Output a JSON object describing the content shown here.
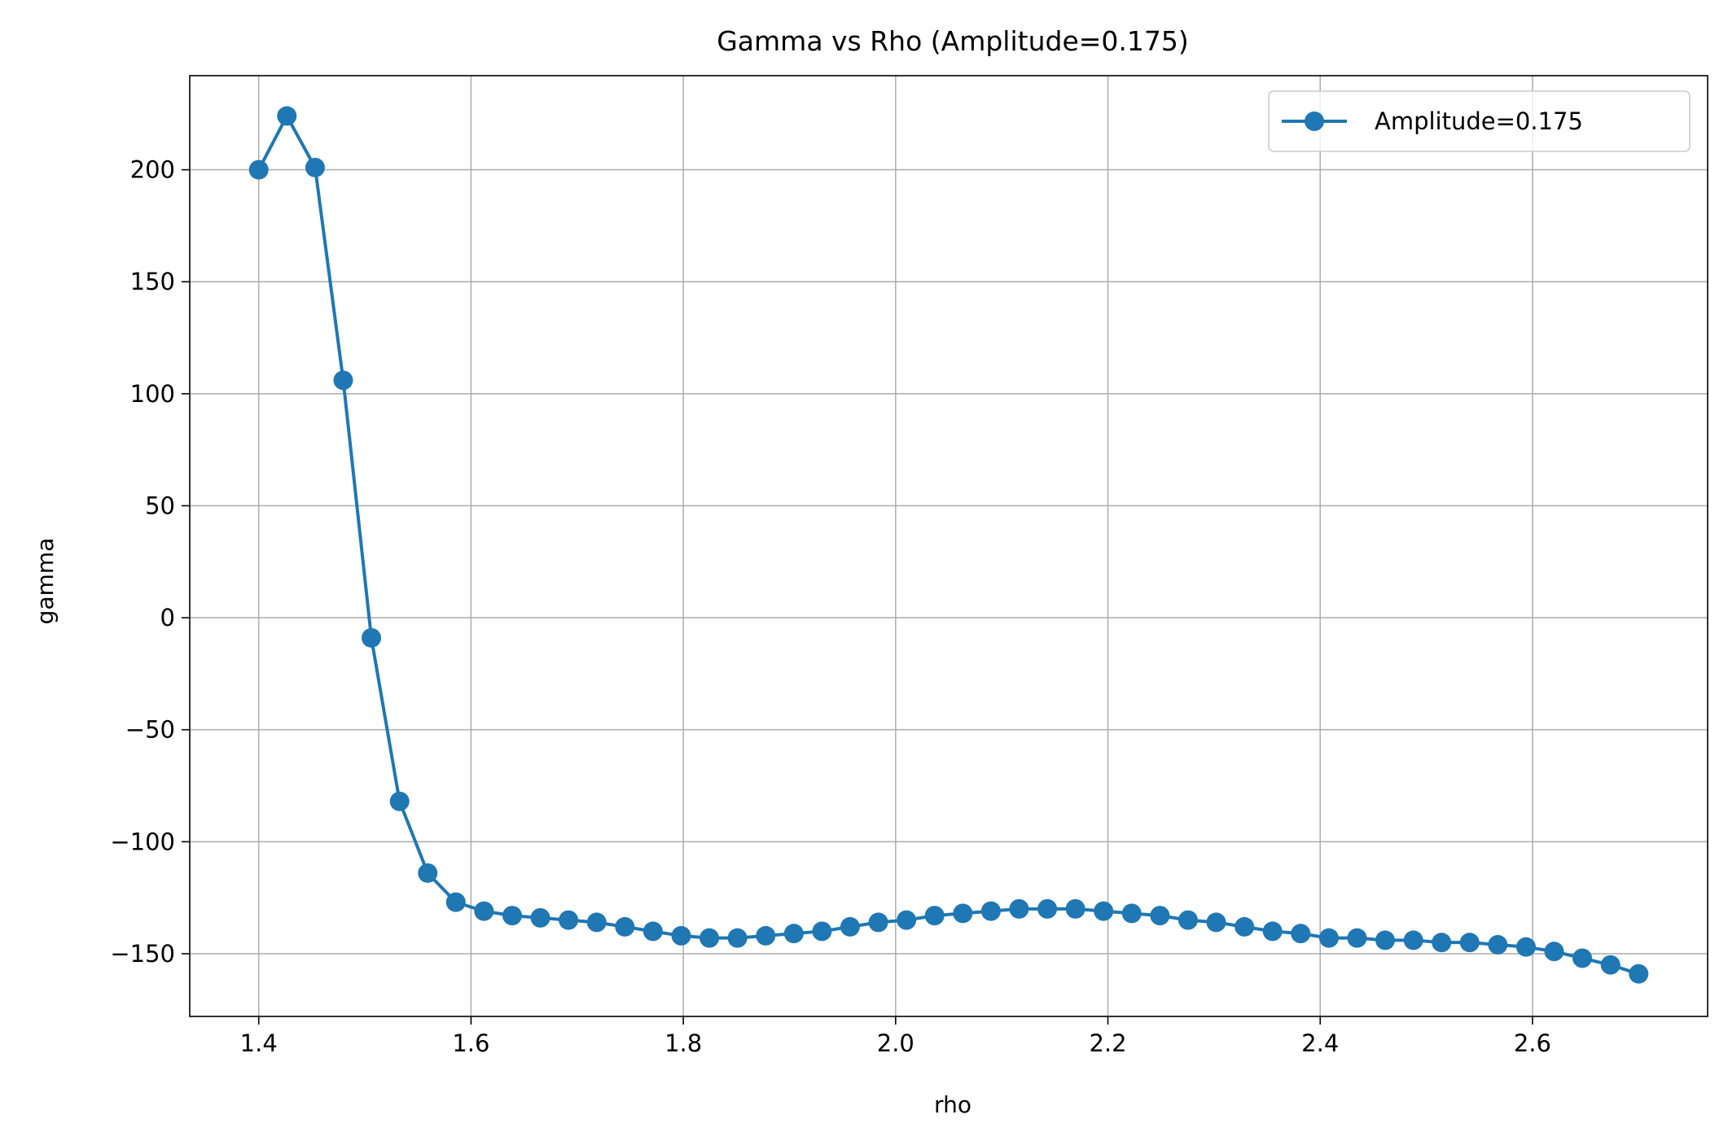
{
  "chart_data": {
    "type": "line",
    "title": "Gamma vs Rho (Amplitude=0.175)",
    "xlabel": "rho",
    "ylabel": "gamma",
    "xlim": [
      1.335,
      2.765
    ],
    "ylim": [
      -178,
      242
    ],
    "xticks": [
      1.4,
      1.6,
      1.8,
      2.0,
      2.2,
      2.4,
      2.6
    ],
    "xtick_labels": [
      "1.4",
      "1.6",
      "1.8",
      "2.0",
      "2.2",
      "2.4",
      "2.6"
    ],
    "yticks": [
      200,
      150,
      100,
      50,
      0,
      -50,
      -100,
      -150
    ],
    "ytick_labels": [
      "200",
      "150",
      "100",
      "50",
      "0",
      "−50",
      "−100",
      "−150"
    ],
    "grid": true,
    "legend_position": "top-right",
    "color": "#1f77b4",
    "marker": "circle",
    "series": [
      {
        "name": "Amplitude=0.175",
        "x": [
          1.4,
          1.4265,
          1.4531,
          1.4796,
          1.5061,
          1.5327,
          1.5592,
          1.5857,
          1.6122,
          1.6388,
          1.6653,
          1.6918,
          1.7184,
          1.7449,
          1.7714,
          1.798,
          1.8245,
          1.851,
          1.8776,
          1.9041,
          1.9306,
          1.9571,
          1.9837,
          2.0102,
          2.0367,
          2.0633,
          2.0898,
          2.1163,
          2.1429,
          2.1694,
          2.1959,
          2.2224,
          2.249,
          2.2755,
          2.302,
          2.3286,
          2.3551,
          2.3816,
          2.4082,
          2.4347,
          2.4612,
          2.4878,
          2.5143,
          2.5408,
          2.5673,
          2.5939,
          2.6204,
          2.6469,
          2.6735,
          2.7
        ],
        "y": [
          200,
          224,
          201,
          106,
          -9,
          -82,
          -114,
          -127,
          -131,
          -133,
          -134,
          -135,
          -136,
          -138,
          -140,
          -142,
          -143,
          -143,
          -142,
          -141,
          -140,
          -138,
          -136,
          -135,
          -133,
          -132,
          -131,
          -130,
          -130,
          -130,
          -131,
          -132,
          -133,
          -135,
          -136,
          -138,
          -140,
          -141,
          -143,
          -143,
          -144,
          -144,
          -145,
          -145,
          -146,
          -147,
          -149,
          -152,
          -155,
          -159
        ]
      }
    ]
  }
}
